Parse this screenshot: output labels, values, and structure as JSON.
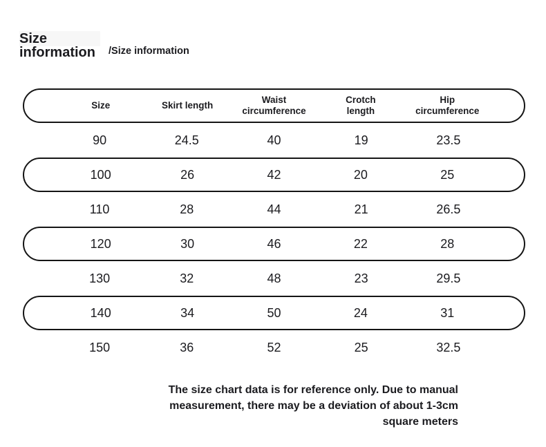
{
  "page": {
    "title": "Size\ninformation",
    "subtitle": "/Size information"
  },
  "chart_data": {
    "type": "table",
    "title": "Size information",
    "columns": [
      "Size",
      "Skirt length",
      "Waist circumference",
      "Crotch length",
      "Hip circumference"
    ],
    "column_labels_display": [
      "Size",
      "Skirt length",
      "Waist\ncircumference",
      "Crotch\nlength",
      "Hip\ncircumference"
    ],
    "rows": [
      {
        "outlined": false,
        "values": [
          "90",
          "24.5",
          "40",
          "19",
          "23.5"
        ]
      },
      {
        "outlined": true,
        "values": [
          "100",
          "26",
          "42",
          "20",
          "25"
        ]
      },
      {
        "outlined": false,
        "values": [
          "110",
          "28",
          "44",
          "21",
          "26.5"
        ]
      },
      {
        "outlined": true,
        "values": [
          "120",
          "30",
          "46",
          "22",
          "28"
        ]
      },
      {
        "outlined": false,
        "values": [
          "130",
          "32",
          "48",
          "23",
          "29.5"
        ]
      },
      {
        "outlined": true,
        "values": [
          "140",
          "34",
          "50",
          "24",
          "31"
        ]
      },
      {
        "outlined": false,
        "values": [
          "150",
          "36",
          "52",
          "25",
          "32.5"
        ]
      }
    ],
    "layout": "header row and alternating rows (100, 120, 140) outlined with black pill borders"
  },
  "footer": {
    "note_lines": [
      "The size chart data is for reference only. Due to manual",
      "measurement, there may be a deviation of about 1-3cm",
      "square meters"
    ]
  },
  "colors": {
    "background": "#ffffff",
    "border": "#141414",
    "text": "#1b1b1f"
  }
}
